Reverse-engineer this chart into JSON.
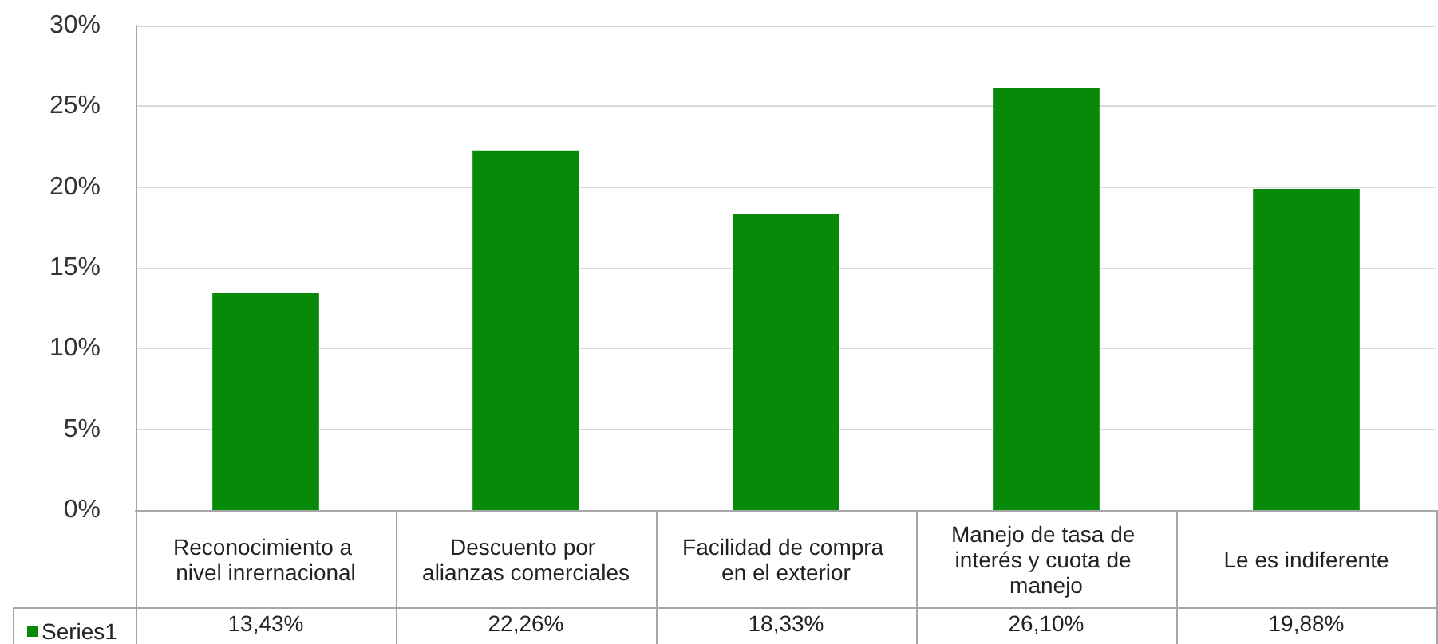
{
  "chart_data": {
    "type": "bar",
    "categories": [
      "Reconocimiento a nivel inrernacional",
      "Descuento por alianzas comerciales",
      "Facilidad de compra en el exterior",
      "Manejo de tasa de interés y cuota de manejo",
      "Le es indiferente"
    ],
    "series": [
      {
        "name": "Series1",
        "color": "#078a08",
        "values": [
          13.43,
          22.26,
          18.33,
          26.1,
          19.88
        ],
        "value_labels": [
          "13,43%",
          "22,26%",
          "18,33%",
          "26,10%",
          "19,88%"
        ]
      }
    ],
    "ylim": [
      0,
      30
    ],
    "yticks": [
      {
        "value": 0,
        "label": "0%"
      },
      {
        "value": 5,
        "label": "5%"
      },
      {
        "value": 10,
        "label": "10%"
      },
      {
        "value": 15,
        "label": "15%"
      },
      {
        "value": 20,
        "label": "20%"
      },
      {
        "value": 25,
        "label": "25%"
      },
      {
        "value": 30,
        "label": "30%"
      }
    ],
    "grid": "y",
    "legend": "bottom left"
  }
}
